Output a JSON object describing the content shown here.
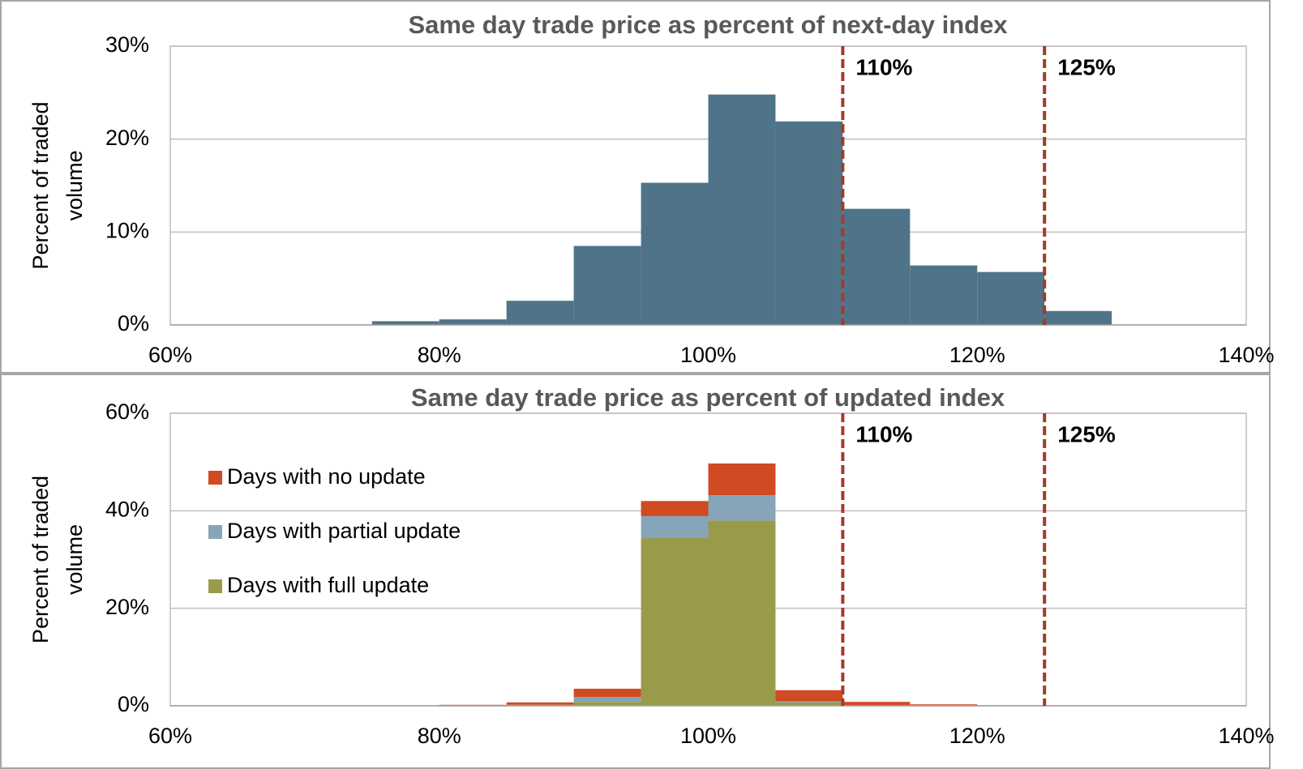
{
  "chart_data": [
    {
      "type": "histogram",
      "title": "Same day trade price as percent of next-day index",
      "ylabel": [
        "Percent of traded",
        "volume"
      ],
      "bins": [
        75,
        80,
        85,
        90,
        95,
        100,
        105,
        110,
        115,
        120,
        125,
        130
      ],
      "values": [
        0.4,
        0.6,
        2.6,
        8.5,
        15.3,
        24.8,
        21.9,
        12.5,
        6.4,
        5.7,
        1.5
      ],
      "color": "#4f7489",
      "xlim": [
        60,
        140
      ],
      "xticks": [
        {
          "value": 60,
          "label": "60%"
        },
        {
          "value": 80,
          "label": "80%"
        },
        {
          "value": 100,
          "label": "100%"
        },
        {
          "value": 120,
          "label": "120%"
        },
        {
          "value": 140,
          "label": "140%"
        }
      ],
      "ylim": [
        0,
        30
      ],
      "yticks": [
        {
          "value": 0,
          "label": "0%"
        },
        {
          "value": 10,
          "label": "10%"
        },
        {
          "value": 20,
          "label": "20%"
        },
        {
          "value": 30,
          "label": "30%"
        }
      ],
      "grid": true,
      "vlines": [
        {
          "x": 110,
          "label": "110%",
          "color": "#a33a2a"
        },
        {
          "x": 125,
          "label": "125%",
          "color": "#a33a2a"
        }
      ]
    },
    {
      "type": "histogram",
      "title": "Same day trade price as percent of updated index",
      "ylabel": [
        "Percent of traded",
        "volume"
      ],
      "bins": [
        80,
        85,
        90,
        95,
        100,
        105,
        110,
        115,
        120,
        125,
        130
      ],
      "series": [
        {
          "name": "Days with full update",
          "color": "#9a9b48",
          "values": [
            0,
            0.1,
            0.8,
            34.4,
            38.0,
            0.7,
            0,
            0,
            0,
            0
          ]
        },
        {
          "name": "Days with partial update",
          "color": "#86a5b8",
          "values": [
            0,
            0.1,
            1.0,
            4.5,
            5.2,
            0.2,
            0.1,
            0,
            0,
            0
          ]
        },
        {
          "name": "Days with no update",
          "color": "#d04a22",
          "values": [
            0.2,
            0.5,
            1.7,
            3.1,
            6.5,
            2.3,
            0.7,
            0.3,
            0.1,
            0
          ]
        }
      ],
      "xlim": [
        60,
        140
      ],
      "xticks": [
        {
          "value": 60,
          "label": "60%"
        },
        {
          "value": 80,
          "label": "80%"
        },
        {
          "value": 100,
          "label": "100%"
        },
        {
          "value": 120,
          "label": "120%"
        },
        {
          "value": 140,
          "label": "140%"
        }
      ],
      "ylim": [
        0,
        60
      ],
      "yticks": [
        {
          "value": 0,
          "label": "0%"
        },
        {
          "value": 20,
          "label": "20%"
        },
        {
          "value": 40,
          "label": "40%"
        },
        {
          "value": 60,
          "label": "60%"
        }
      ],
      "grid": true,
      "legend": "upper left",
      "vlines": [
        {
          "x": 110,
          "label": "110%",
          "color": "#a33a2a"
        },
        {
          "x": 125,
          "label": "125%",
          "color": "#a33a2a"
        }
      ]
    }
  ]
}
